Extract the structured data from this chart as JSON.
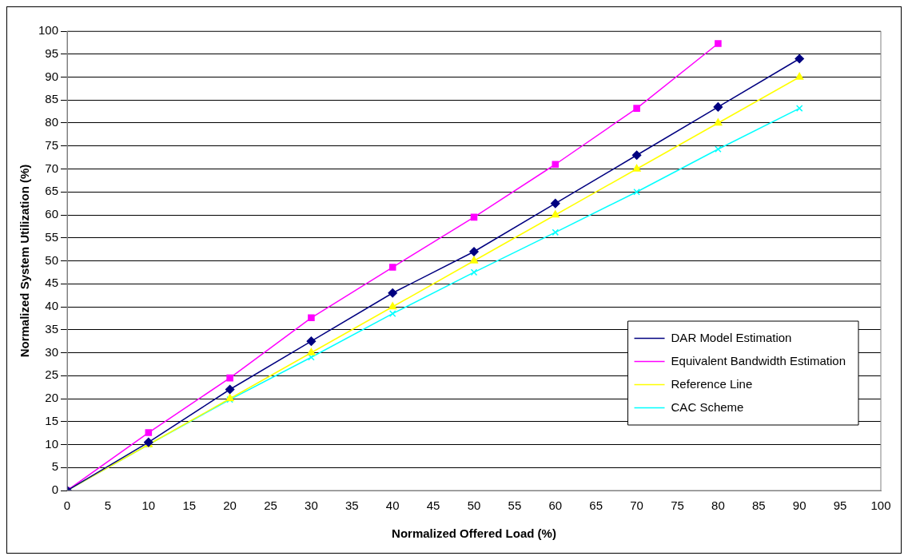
{
  "chart_data": {
    "type": "line",
    "xlabel": "Normalized Offered Load (%)",
    "ylabel": "Normalized System Utilization (%)",
    "x": [
      0,
      10,
      20,
      30,
      40,
      50,
      60,
      70,
      80,
      90
    ],
    "series": [
      {
        "name": "DAR Model Estimation",
        "color": "#000080",
        "marker": "diamond",
        "values": [
          0,
          10.5,
          22,
          32.5,
          43,
          52,
          62.5,
          73,
          83.5,
          94
        ]
      },
      {
        "name": "Equivalent Bandwidth Estimation",
        "color": "#ff00ff",
        "marker": "square",
        "values": [
          0,
          12.6,
          24.5,
          37.6,
          48.6,
          59.5,
          71,
          83.2,
          97.3,
          null
        ]
      },
      {
        "name": "Reference Line",
        "color": "#ffff00",
        "marker": "triangle",
        "values": [
          0,
          10,
          20,
          30,
          40,
          50,
          60,
          70,
          80,
          90
        ]
      },
      {
        "name": "CAC Scheme",
        "color": "#00ffff",
        "marker": "cross",
        "values": [
          0,
          10,
          19.8,
          29,
          38.5,
          47.5,
          56.2,
          65,
          74.3,
          83.2
        ]
      }
    ],
    "xlim": [
      0,
      100
    ],
    "xticks": [
      0,
      5,
      10,
      15,
      20,
      25,
      30,
      35,
      40,
      45,
      50,
      55,
      60,
      65,
      70,
      75,
      80,
      85,
      90,
      95,
      100
    ],
    "ylim": [
      0,
      100
    ],
    "yticks": [
      0,
      5,
      10,
      15,
      20,
      25,
      30,
      35,
      40,
      45,
      50,
      55,
      60,
      65,
      70,
      75,
      80,
      85,
      90,
      95,
      100
    ],
    "grid": "y",
    "legend": "bottom right",
    "line_style": "solid"
  }
}
